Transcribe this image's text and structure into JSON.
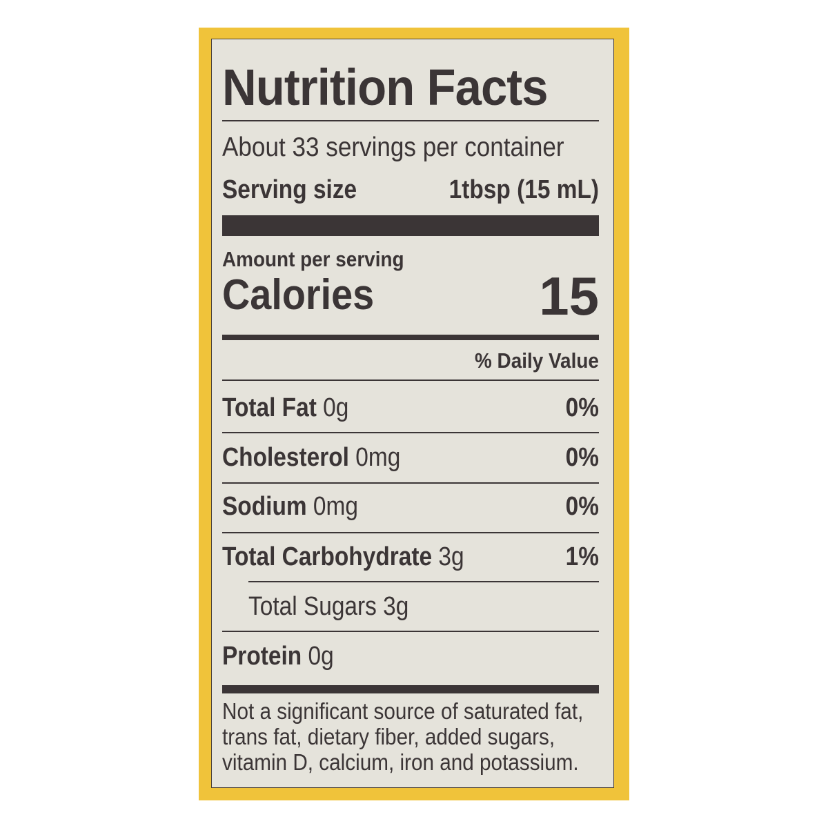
{
  "label": {
    "title": "Nutrition Facts",
    "servings_per_container": "About 33 servings per container",
    "serving_size_label": "Serving size",
    "serving_size_value": "1tbsp (15 mL)",
    "amount_per_serving": "Amount per serving",
    "calories_label": "Calories",
    "calories_value": "15",
    "daily_value_header": "% Daily Value",
    "nutrients": [
      {
        "name": "Total Fat",
        "amount": "0g",
        "dv": "0%"
      },
      {
        "name": "Cholesterol",
        "amount": "0mg",
        "dv": "0%"
      },
      {
        "name": "Sodium",
        "amount": "0mg",
        "dv": "0%"
      },
      {
        "name": "Total Carbohydrate",
        "amount": "3g",
        "dv": "1%"
      },
      {
        "name": "Total Sugars",
        "amount": "3g",
        "dv": ""
      },
      {
        "name": "Protein",
        "amount": "0g",
        "dv": ""
      }
    ],
    "footnote": [
      "Not a significant source of saturated fat,",
      "trans fat, dietary fiber, added sugars,",
      "vitamin D, calcium, iron and potassium."
    ]
  },
  "colors": {
    "frame": "#f0c33a",
    "panel": "#e5e3db",
    "ink": "#3b3536"
  }
}
